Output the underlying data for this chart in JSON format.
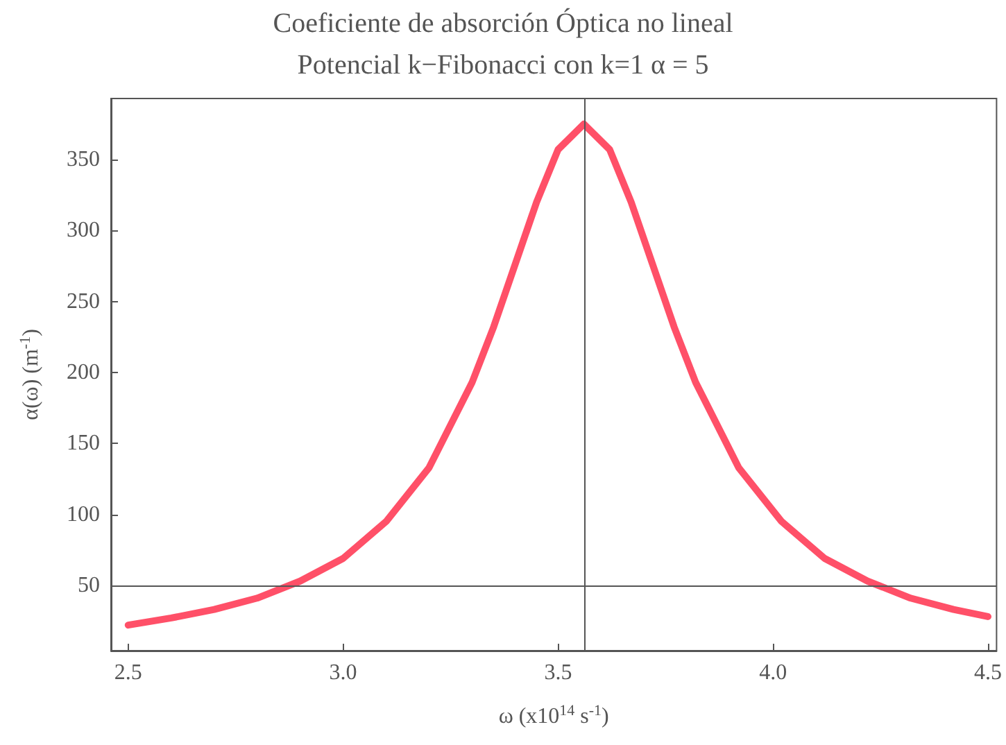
{
  "chart_data": {
    "type": "line",
    "title": "Coeficiente de absorción Óptica no lineal",
    "subtitle": "Potencial k−Fibonacci con k=1 α = 5",
    "xlabel": "ω (x10$^{14}$ s$^{-1}$)",
    "ylabel": "α(ω) (m$^{-1}$)",
    "x": [
      2.5,
      2.6,
      2.7,
      2.8,
      2.9,
      3.0,
      3.1,
      3.2,
      3.3,
      3.35,
      3.4,
      3.45,
      3.5,
      3.56,
      3.62,
      3.67,
      3.72,
      3.77,
      3.82,
      3.92,
      4.02,
      4.12,
      4.22,
      4.32,
      4.42,
      4.5
    ],
    "series": [
      {
        "color": "#ff5068",
        "values": [
          22,
          27,
          33,
          41,
          53,
          69,
          95,
          133,
          193,
          232,
          276,
          320,
          357,
          375,
          357,
          320,
          276,
          232,
          193,
          133,
          95,
          69,
          53,
          41,
          33,
          28
        ]
      }
    ],
    "xlim": [
      2.46,
      4.52
    ],
    "ylim": [
      4,
      393
    ],
    "xticks": [
      2.5,
      {
        "value": 3,
        "label": "3.0"
      },
      3.5,
      {
        "value": 4,
        "label": "4.0"
      },
      4.5
    ],
    "yticks": [
      50,
      100,
      150,
      200,
      250,
      300,
      350
    ],
    "ref_lines": [
      {
        "axis": "y",
        "value": 50,
        "color": "#555555"
      },
      {
        "axis": "x",
        "value": 3.56,
        "color": "#555555"
      }
    ],
    "grid": false,
    "marker": "none",
    "line_style": "solid"
  }
}
